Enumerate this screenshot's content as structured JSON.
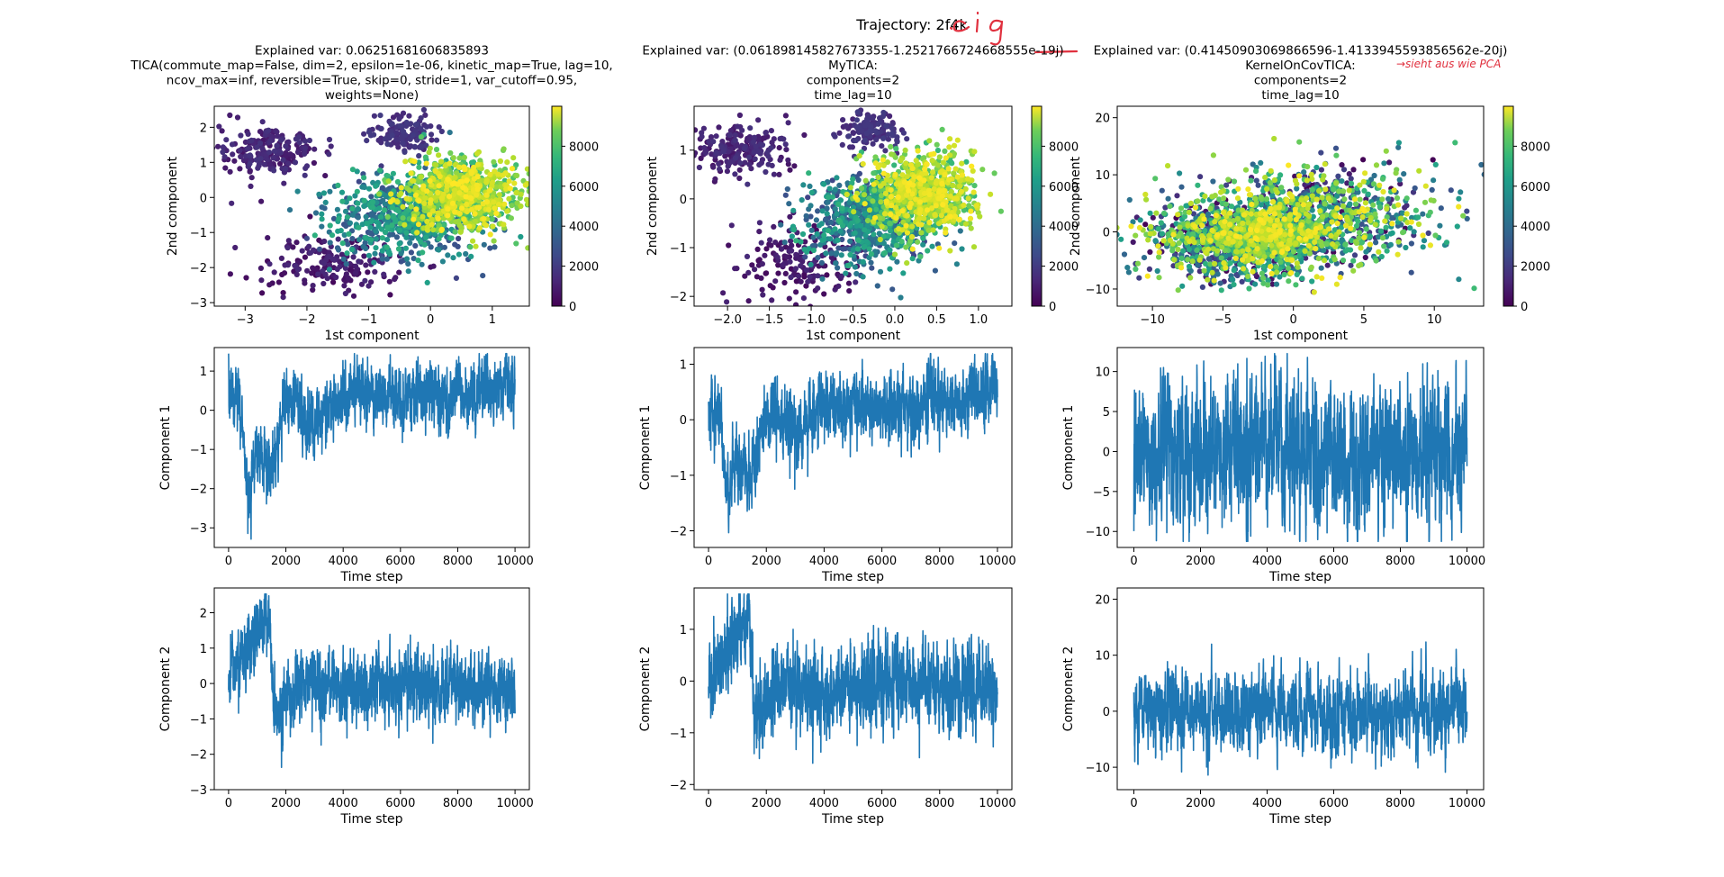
{
  "suptitle": "Trajectory: 2f4k",
  "annotations": {
    "handwritten_top": ".eig",
    "handwritten_right": "→sieht aus wie PCA",
    "underline_color": "#e0303e"
  },
  "colormap": "viridis",
  "colors": {
    "line": "#1f77b4",
    "axes": "#000000"
  },
  "chart_data": [
    {
      "type": "scatter",
      "panel": "row1-col1",
      "title_lines": [
        "Explained var: 0.06251681606835893",
        "TICA(commute_map=False, dim=2, epsilon=1e-06, kinetic_map=True, lag=10,",
        "ncov_max=inf, reversible=True, skip=0, stride=1, var_cutoff=0.95,",
        "weights=None)"
      ],
      "xlabel": "1st component",
      "ylabel": "2nd component",
      "xlim": [
        -3.5,
        1.6
      ],
      "ylim": [
        -3.1,
        2.6
      ],
      "xticks": [
        -3,
        -2,
        -1,
        0,
        1
      ],
      "yticks": [
        -3,
        -2,
        -1,
        0,
        1,
        2
      ],
      "colorbar": {
        "ticks": [
          0,
          2000,
          4000,
          6000,
          8000
        ],
        "range": [
          0,
          10000
        ]
      },
      "clusters": [
        {
          "cx": -2.6,
          "cy": 1.3,
          "sx": 0.4,
          "sy": 0.35,
          "t": [
            500,
            1500
          ],
          "n": 220
        },
        {
          "cx": -0.45,
          "cy": 1.8,
          "sx": 0.25,
          "sy": 0.25,
          "t": [
            1000,
            1800
          ],
          "n": 140
        },
        {
          "cx": -1.6,
          "cy": -1.9,
          "sx": 0.55,
          "sy": 0.45,
          "t": [
            200,
            1200
          ],
          "n": 180
        },
        {
          "cx": -0.4,
          "cy": -0.5,
          "sx": 0.6,
          "sy": 0.6,
          "t": [
            2000,
            6500
          ],
          "n": 700
        },
        {
          "cx": 0.5,
          "cy": 0.1,
          "sx": 0.45,
          "sy": 0.5,
          "t": [
            6500,
            10000
          ],
          "n": 900
        }
      ]
    },
    {
      "type": "scatter",
      "panel": "row1-col2",
      "title_lines": [
        "Explained var: (0.061898145827673355-1.2521766724668555e-19j)",
        "MyTICA:",
        "components=2",
        "time_lag=10"
      ],
      "xlabel": "1st component",
      "ylabel": "2nd component",
      "xlim": [
        -2.4,
        1.4
      ],
      "ylim": [
        -2.2,
        1.9
      ],
      "xticks": [
        -2.0,
        -1.5,
        -1.0,
        -0.5,
        0.0,
        0.5,
        1.0
      ],
      "yticks": [
        -2,
        -1,
        0,
        1
      ],
      "colorbar": {
        "ticks": [
          0,
          2000,
          4000,
          6000,
          8000
        ],
        "range": [
          0,
          10000
        ]
      },
      "clusters": [
        {
          "cx": -1.85,
          "cy": 1.0,
          "sx": 0.3,
          "sy": 0.25,
          "t": [
            500,
            1500
          ],
          "n": 220
        },
        {
          "cx": -0.3,
          "cy": 1.4,
          "sx": 0.18,
          "sy": 0.2,
          "t": [
            1000,
            1800
          ],
          "n": 140
        },
        {
          "cx": -1.15,
          "cy": -1.3,
          "sx": 0.35,
          "sy": 0.35,
          "t": [
            200,
            1200
          ],
          "n": 180
        },
        {
          "cx": -0.3,
          "cy": -0.4,
          "sx": 0.4,
          "sy": 0.45,
          "t": [
            2000,
            6500
          ],
          "n": 700
        },
        {
          "cx": 0.35,
          "cy": 0.1,
          "sx": 0.3,
          "sy": 0.4,
          "t": [
            6500,
            10000
          ],
          "n": 900
        }
      ]
    },
    {
      "type": "scatter",
      "panel": "row1-col3",
      "title_lines": [
        "Explained var: (0.41450903069866596-1.4133945593856562e-20j)",
        "KernelOnCovTICA:",
        "components=2",
        "time_lag=10"
      ],
      "xlabel": "1st component",
      "ylabel": "2nd component",
      "xlim": [
        -12.5,
        13.5
      ],
      "ylim": [
        -13,
        22
      ],
      "xticks": [
        -10,
        -5,
        0,
        5,
        10
      ],
      "yticks": [
        -10,
        0,
        10,
        20
      ],
      "colorbar": {
        "ticks": [
          0,
          2000,
          4000,
          6000,
          8000
        ],
        "range": [
          0,
          10000
        ]
      },
      "clusters": [
        {
          "cx": -4.0,
          "cy": -1.5,
          "sx": 3.5,
          "sy": 3.5,
          "t": [
            0,
            10000
          ],
          "n": 900
        },
        {
          "cx": 2.0,
          "cy": 3.0,
          "sx": 4.0,
          "sy": 4.5,
          "t": [
            0,
            10000
          ],
          "n": 900
        },
        {
          "cx": -2.0,
          "cy": 0.0,
          "sx": 2.5,
          "sy": 2.0,
          "t": [
            6000,
            10000
          ],
          "n": 500
        }
      ]
    },
    {
      "type": "line",
      "panel": "row2-col1",
      "xlabel": "Time step",
      "ylabel": "Component 1",
      "xlim": [
        -500,
        10500
      ],
      "ylim": [
        -3.5,
        1.6
      ],
      "xticks": [
        0,
        2000,
        4000,
        6000,
        8000,
        10000
      ],
      "yticks": [
        -3,
        -2,
        -1,
        0,
        1
      ],
      "n": 10000,
      "mean": [
        [
          0,
          0.5
        ],
        [
          400,
          0
        ],
        [
          700,
          -2.2
        ],
        [
          1000,
          -1.0
        ],
        [
          1500,
          -1.5
        ],
        [
          2000,
          0.3
        ],
        [
          3000,
          -0.3
        ],
        [
          4000,
          0.5
        ],
        [
          6000,
          0.3
        ],
        [
          8000,
          0.4
        ],
        [
          10000,
          0.7
        ]
      ],
      "noise": 0.4
    },
    {
      "type": "line",
      "panel": "row2-col2",
      "xlabel": "Time step",
      "ylabel": "Component 1",
      "xlim": [
        -500,
        10500
      ],
      "ylim": [
        -2.3,
        1.3
      ],
      "xticks": [
        0,
        2000,
        4000,
        6000,
        8000,
        10000
      ],
      "yticks": [
        -2,
        -1,
        0,
        1
      ],
      "n": 10000,
      "mean": [
        [
          0,
          0.3
        ],
        [
          400,
          0
        ],
        [
          700,
          -1.4
        ],
        [
          1000,
          -0.7
        ],
        [
          1500,
          -1.0
        ],
        [
          2000,
          0.2
        ],
        [
          3000,
          -0.2
        ],
        [
          4000,
          0.3
        ],
        [
          6000,
          0.2
        ],
        [
          8000,
          0.3
        ],
        [
          10000,
          0.5
        ]
      ],
      "noise": 0.3
    },
    {
      "type": "line",
      "panel": "row2-col3",
      "xlabel": "Time step",
      "ylabel": "Component 1",
      "xlim": [
        -500,
        10500
      ],
      "ylim": [
        -12,
        13
      ],
      "xticks": [
        0,
        2000,
        4000,
        6000,
        8000,
        10000
      ],
      "yticks": [
        -10,
        -5,
        0,
        5,
        10
      ],
      "n": 10000,
      "mean": [
        [
          0,
          0.5
        ],
        [
          2000,
          -0.5
        ],
        [
          4000,
          0.5
        ],
        [
          6000,
          -0.5
        ],
        [
          8000,
          0.5
        ],
        [
          10000,
          -0.5
        ]
      ],
      "noise": 4.5
    },
    {
      "type": "line",
      "panel": "row3-col1",
      "xlabel": "Time step",
      "ylabel": "Component 2",
      "xlim": [
        -500,
        10500
      ],
      "ylim": [
        -3.0,
        2.7
      ],
      "xticks": [
        0,
        2000,
        4000,
        6000,
        8000,
        10000
      ],
      "yticks": [
        -3,
        -2,
        -1,
        0,
        1,
        2
      ],
      "n": 10000,
      "mean": [
        [
          0,
          0
        ],
        [
          500,
          0.8
        ],
        [
          1400,
          1.8
        ],
        [
          1600,
          -1.2
        ],
        [
          2500,
          0
        ],
        [
          4000,
          -0.2
        ],
        [
          6000,
          0
        ],
        [
          8000,
          -0.1
        ],
        [
          10000,
          -0.2
        ]
      ],
      "noise": 0.5
    },
    {
      "type": "line",
      "panel": "row3-col2",
      "xlabel": "Time step",
      "ylabel": "Component 2",
      "xlim": [
        -500,
        10500
      ],
      "ylim": [
        -2.1,
        1.8
      ],
      "xticks": [
        0,
        2000,
        4000,
        6000,
        8000,
        10000
      ],
      "yticks": [
        -2,
        -1,
        0,
        1
      ],
      "n": 10000,
      "mean": [
        [
          0,
          0
        ],
        [
          500,
          0.5
        ],
        [
          1400,
          1.2
        ],
        [
          1600,
          -0.8
        ],
        [
          2500,
          0
        ],
        [
          4000,
          -0.2
        ],
        [
          6000,
          0
        ],
        [
          8000,
          -0.1
        ],
        [
          10000,
          -0.2
        ]
      ],
      "noise": 0.4
    },
    {
      "type": "line",
      "panel": "row3-col3",
      "xlabel": "Time step",
      "ylabel": "Component 2",
      "xlim": [
        -500,
        10500
      ],
      "ylim": [
        -14,
        22
      ],
      "xticks": [
        0,
        2000,
        4000,
        6000,
        8000,
        10000
      ],
      "yticks": [
        -10,
        0,
        10,
        20
      ],
      "n": 10000,
      "mean": [
        [
          0,
          0
        ],
        [
          2000,
          0
        ],
        [
          4000,
          0
        ],
        [
          6000,
          0
        ],
        [
          8000,
          0
        ],
        [
          10000,
          0
        ]
      ],
      "noise": 3.5
    }
  ]
}
